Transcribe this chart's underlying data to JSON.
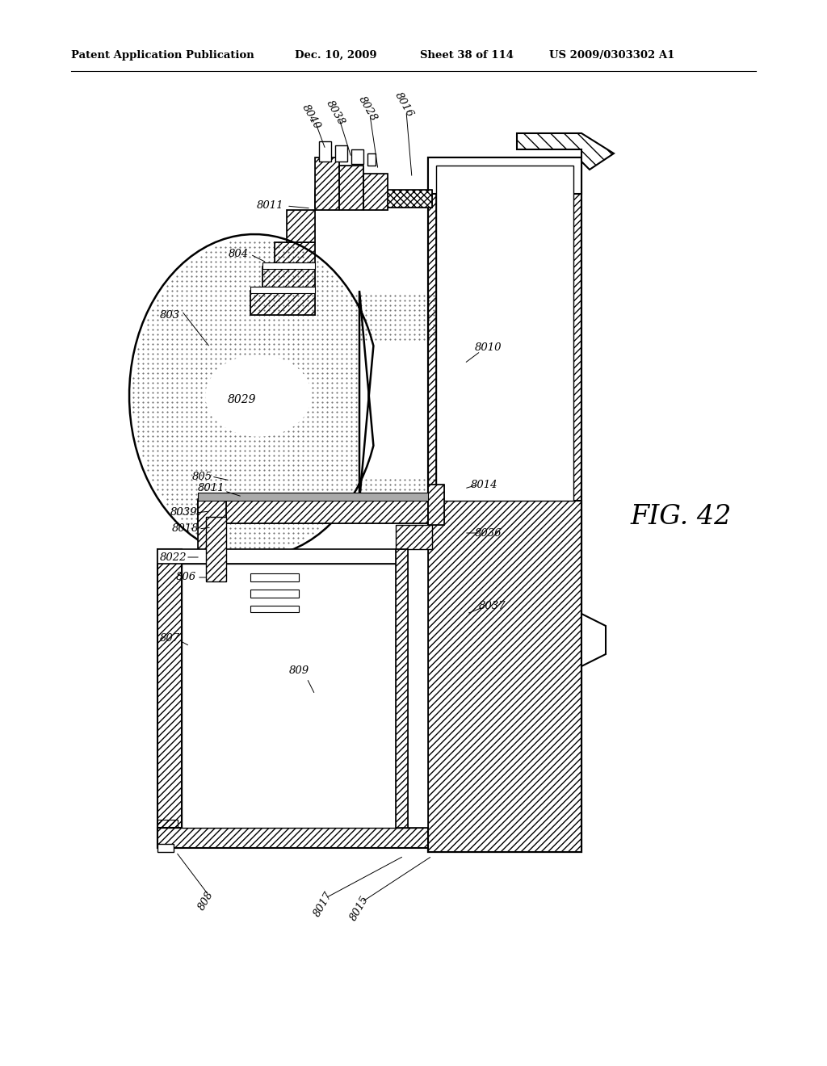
{
  "title_line1": "Patent Application Publication",
  "title_line2": "Dec. 10, 2009",
  "title_line3": "Sheet 38 of 114",
  "title_line4": "US 2009/0303302 A1",
  "fig_label": "FIG. 42",
  "background_color": "#ffffff",
  "line_color": "#000000"
}
